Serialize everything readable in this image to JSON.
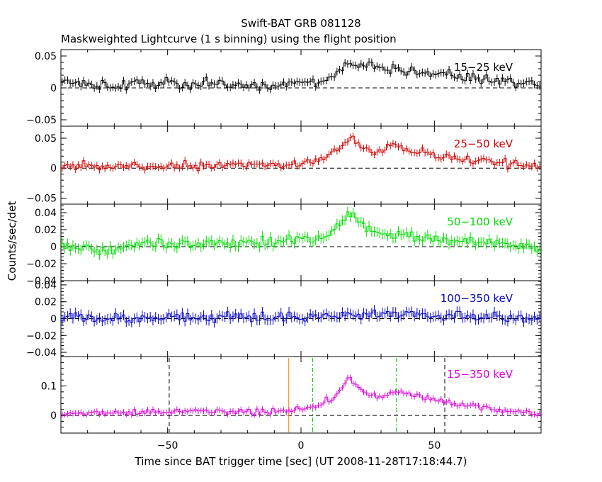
{
  "title": "Swift-BAT GRB 081128",
  "subtitle": "Maskweighted Lightcurve (1 s binning) using the flight position",
  "xlabel": "Time since BAT trigger time [sec] (UT 2008-11-28T17:18:44.7)",
  "ylabel": "Counts/sec/det",
  "colors": {
    "axis": "#000000",
    "band_15_25": "#000000",
    "band_25_50": "#d00000",
    "band_50_100": "#00dd00",
    "band_100_350": "#0000c8",
    "band_15_350": "#dd00dd",
    "trigger_line": "#ff8000",
    "t90_line": "#00c000",
    "t100_line": "#000000"
  },
  "chart_data": {
    "type": "line",
    "style": "step-with-error-bars",
    "xlim": [
      -90,
      90
    ],
    "x_ticks": [
      -50,
      0,
      50
    ],
    "x_tick_labels": [
      "−50",
      "0",
      "50"
    ],
    "panels": [
      {
        "band": "15-25 keV",
        "band_label": "15−25 keV",
        "color_key": "band_15_25",
        "ylim": [
          -0.06,
          0.06
        ],
        "y_ticks": [
          -0.05,
          0,
          0.05
        ],
        "y_tick_labels": [
          "−0.05",
          "0",
          "0.05"
        ],
        "envelope": [
          [
            -90,
            0.008
          ],
          [
            -80,
            0.005
          ],
          [
            -60,
            0.007
          ],
          [
            -40,
            0.005
          ],
          [
            -25,
            0.008
          ],
          [
            -15,
            0.0
          ],
          [
            -5,
            0.006
          ],
          [
            5,
            0.01
          ],
          [
            12,
            0.018
          ],
          [
            18,
            0.035
          ],
          [
            22,
            0.034
          ],
          [
            28,
            0.032
          ],
          [
            33,
            0.03
          ],
          [
            38,
            0.028
          ],
          [
            45,
            0.024
          ],
          [
            55,
            0.02
          ],
          [
            65,
            0.015
          ],
          [
            75,
            0.01
          ],
          [
            85,
            0.007
          ],
          [
            90,
            0.006
          ]
        ],
        "noise": 0.007,
        "err": 0.006
      },
      {
        "band": "25-50 keV",
        "band_label": "25−50 keV",
        "color_key": "band_25_50",
        "ylim": [
          -0.06,
          0.07
        ],
        "y_ticks": [
          -0.05,
          0,
          0.05
        ],
        "y_tick_labels": [
          "−0.05",
          "0",
          "0.05"
        ],
        "envelope": [
          [
            -90,
            0.003
          ],
          [
            -70,
            0.003
          ],
          [
            -40,
            0.004
          ],
          [
            -20,
            0.006
          ],
          [
            -5,
            0.006
          ],
          [
            5,
            0.01
          ],
          [
            10,
            0.02
          ],
          [
            14,
            0.03
          ],
          [
            18,
            0.048
          ],
          [
            20,
            0.05
          ],
          [
            24,
            0.032
          ],
          [
            30,
            0.024
          ],
          [
            35,
            0.04
          ],
          [
            40,
            0.03
          ],
          [
            45,
            0.025
          ],
          [
            55,
            0.018
          ],
          [
            65,
            0.013
          ],
          [
            70,
            0.01
          ],
          [
            75,
            0.008
          ],
          [
            90,
            0.004
          ]
        ],
        "noise": 0.006,
        "err": 0.006
      },
      {
        "band": "50-100 keV",
        "band_label": "50−100 keV",
        "color_key": "band_50_100",
        "ylim": [
          -0.04,
          0.05
        ],
        "y_ticks": [
          -0.04,
          -0.02,
          0,
          0.02,
          0.04
        ],
        "y_tick_labels": [
          "−0.04",
          "−0.02",
          "0",
          "0.02",
          "0.04"
        ],
        "envelope": [
          [
            -90,
            0.0
          ],
          [
            -75,
            -0.005
          ],
          [
            -60,
            0.004
          ],
          [
            -40,
            0.002
          ],
          [
            -20,
            0.004
          ],
          [
            -5,
            0.006
          ],
          [
            8,
            0.01
          ],
          [
            13,
            0.025
          ],
          [
            17,
            0.035
          ],
          [
            20,
            0.038
          ],
          [
            24,
            0.025
          ],
          [
            28,
            0.015
          ],
          [
            35,
            0.014
          ],
          [
            45,
            0.01
          ],
          [
            55,
            0.007
          ],
          [
            70,
            0.006
          ],
          [
            80,
            0.002
          ],
          [
            90,
            0.0
          ]
        ],
        "noise": 0.005,
        "err": 0.006
      },
      {
        "band": "100-350 keV",
        "band_label": "100−350 keV",
        "color_key": "band_100_350",
        "ylim": [
          -0.045,
          0.045
        ],
        "y_ticks": [
          -0.04,
          -0.02,
          0,
          0.02,
          0.04
        ],
        "y_tick_labels": [
          "−0.04",
          "−0.02",
          "0",
          "0.02",
          "0.04"
        ],
        "envelope": [
          [
            -90,
            0.002
          ],
          [
            -60,
            0.0
          ],
          [
            -30,
            0.002
          ],
          [
            0,
            0.002
          ],
          [
            20,
            0.005
          ],
          [
            30,
            0.005
          ],
          [
            50,
            0.003
          ],
          [
            70,
            0.002
          ],
          [
            90,
            0.0
          ]
        ],
        "noise": 0.005,
        "err": 0.006
      },
      {
        "band": "15-350 keV",
        "band_label": "15−350 keV",
        "color_key": "band_15_350",
        "ylim": [
          -0.06,
          0.2
        ],
        "y_ticks": [
          0,
          0.1
        ],
        "y_tick_labels": [
          "0",
          "0.1"
        ],
        "envelope": [
          [
            -90,
            0.005
          ],
          [
            -70,
            0.01
          ],
          [
            -50,
            0.012
          ],
          [
            -30,
            0.015
          ],
          [
            -15,
            0.01
          ],
          [
            -5,
            0.018
          ],
          [
            5,
            0.03
          ],
          [
            12,
            0.06
          ],
          [
            16,
            0.1
          ],
          [
            18,
            0.13
          ],
          [
            20,
            0.11
          ],
          [
            24,
            0.07
          ],
          [
            30,
            0.06
          ],
          [
            35,
            0.08
          ],
          [
            40,
            0.072
          ],
          [
            45,
            0.065
          ],
          [
            52,
            0.05
          ],
          [
            60,
            0.035
          ],
          [
            70,
            0.025
          ],
          [
            80,
            0.012
          ],
          [
            90,
            0.005
          ]
        ],
        "noise": 0.008,
        "err": 0.01
      }
    ],
    "markers": [
      {
        "name": "T100 start",
        "x": -49.4,
        "color_key": "t100_line",
        "dash": "6,4"
      },
      {
        "name": "trigger",
        "x": -4.6,
        "color_key": "trigger_line",
        "dash": ""
      },
      {
        "name": "T90 start",
        "x": 4.4,
        "color_key": "t90_line",
        "dash": "6,3,2,3"
      },
      {
        "name": "T90 end",
        "x": 35.8,
        "color_key": "t90_line",
        "dash": "6,3,2,3"
      },
      {
        "name": "T100 end",
        "x": 53.9,
        "color_key": "t100_line",
        "dash": "6,4"
      }
    ]
  }
}
